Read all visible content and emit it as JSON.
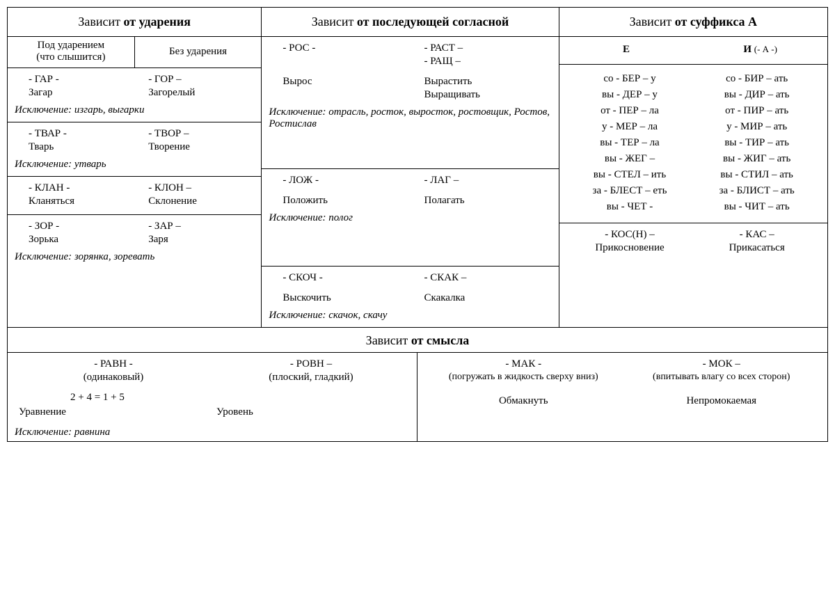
{
  "headers": {
    "col1": {
      "pre": "Зависит ",
      "bold": "от ударения"
    },
    "col2": {
      "pre": "Зависит ",
      "bold": "от последующей согласной"
    },
    "col3": {
      "pre": "Зависит ",
      "bold": "от суффикса А"
    },
    "bottom": {
      "pre": "Зависит ",
      "bold": "от смысла"
    }
  },
  "col1": {
    "sub1": "Под ударением\n(что слышится)",
    "sub2": "Без ударения",
    "cells": [
      {
        "left_root": "- ГАР -",
        "left_ex": "Загар",
        "right_root": "- ГОР –",
        "right_ex": "Загорелый",
        "exc": "Исключение: изгарь, выгарки"
      },
      {
        "left_root": "- ТВАР -",
        "left_ex": "Тварь",
        "right_root": "- ТВОР –",
        "right_ex": "Творение",
        "exc": "Исключение: утварь"
      },
      {
        "left_root": "- КЛАН -",
        "left_ex": "Кланяться",
        "right_root": "- КЛОН –",
        "right_ex": "Склонение",
        "exc": ""
      },
      {
        "left_root": "- ЗОР -",
        "left_ex": "Зорька",
        "right_root": "- ЗАР –",
        "right_ex": "Заря",
        "exc": "Исключение: зорянка, зоревать"
      }
    ]
  },
  "col2": {
    "cells": [
      {
        "left_root": "- РОС -",
        "left_ex": "Вырос",
        "right_root": "- РАСТ –",
        "right_root2": "- РАЩ –",
        "right_ex": "Вырастить",
        "right_ex2": "Выращивать",
        "exc": "Исключение: отрасль, росток, выросток, ростовщик, Ростов, Ростислав"
      },
      {
        "left_root": "- ЛОЖ -",
        "left_ex": "Положить",
        "right_root": "- ЛАГ –",
        "right_ex": "Полагать",
        "exc": "Исключение: полог"
      },
      {
        "left_root": "- СКОЧ -",
        "left_ex": "Выскочить",
        "right_root": "- СКАК –",
        "right_ex": "Скакалка",
        "exc": "Исключение: скачок, скачу"
      }
    ]
  },
  "col3": {
    "sub1": "Е",
    "sub2_bold": "И ",
    "sub2_small": "(- А -)",
    "left_lines": [
      "со - БЕР – у",
      "вы - ДЕР – у",
      "от - ПЕР – ла",
      "у - МЕР – ла",
      "вы - ТЕР – ла",
      "вы - ЖЕГ –",
      "вы - СТЕЛ – ить",
      "за - БЛЕСТ – еть",
      "вы - ЧЕТ -"
    ],
    "right_lines": [
      "со - БИР – ать",
      "вы - ДИР – ать",
      "от - ПИР – ать",
      "у - МИР – ать",
      "вы - ТИР – ать",
      "вы - ЖИГ – ать",
      "вы - СТИЛ – ать",
      "за - БЛИСТ – ать",
      "вы - ЧИТ – ать"
    ],
    "bottom": {
      "left_root": "- КОС(Н) –",
      "left_ex": "Прикосновение",
      "right_root": "- КАС –",
      "right_ex": "Прикасаться"
    }
  },
  "bottom": {
    "left": {
      "l_root": "- РАВН -",
      "l_sub": "(одинаковый)",
      "r_root": "- РОВН –",
      "r_sub": "(плоский, гладкий)",
      "eq": "2 + 4 = 1 + 5",
      "l_ex": "Уравнение",
      "r_ex": "Уровень",
      "exc": "Исключение: равнина"
    },
    "right": {
      "l_root": "- МАК -",
      "l_sub": "(погружать в жидкость сверху вниз)",
      "r_root": "- МОК –",
      "r_sub": "(впитывать влагу со всех сторон)",
      "l_ex": "Обмакнуть",
      "r_ex": "Непромокаемая"
    }
  }
}
